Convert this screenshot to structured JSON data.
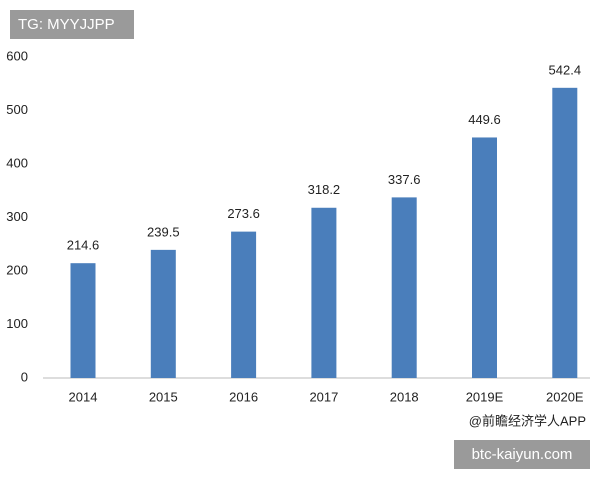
{
  "badge": "TG: MYYJJPP",
  "source": "@前瞻经济学人APP",
  "watermark": "btc-kaiyun.com",
  "chart_data": {
    "type": "bar",
    "categories": [
      "2014",
      "2015",
      "2016",
      "2017",
      "2018",
      "2019E",
      "2020E"
    ],
    "values": [
      214.6,
      239.5,
      273.6,
      318.2,
      337.6,
      449.6,
      542.4
    ],
    "color": "#4a7ebb",
    "ylim": [
      0,
      600
    ],
    "yticks": [
      0,
      100,
      200,
      300,
      400,
      500,
      600
    ],
    "grid": false
  }
}
